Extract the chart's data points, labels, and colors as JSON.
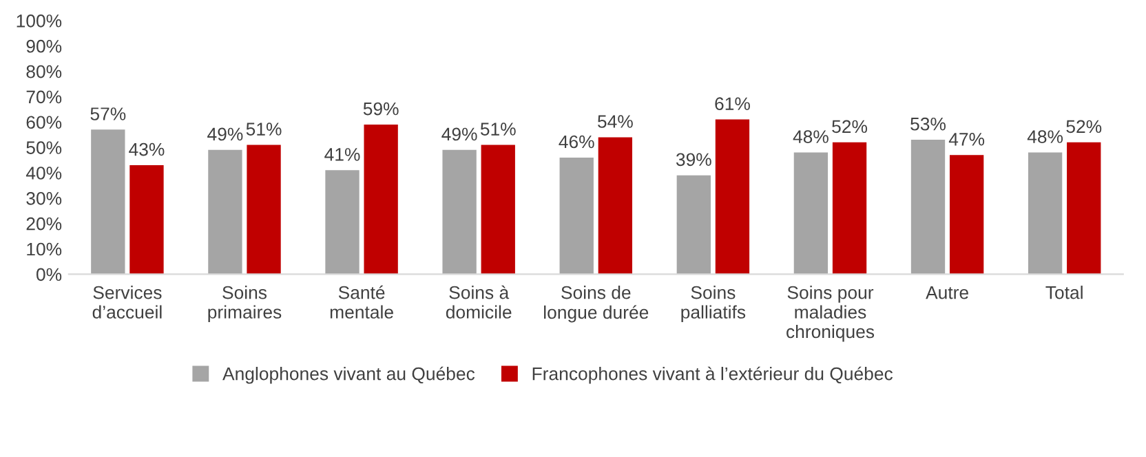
{
  "chart_data": {
    "type": "bar",
    "categories": [
      "Services\nd’accueil",
      "Soins\nprimaires",
      "Santé\nmentale",
      "Soins à\ndomicile",
      "Soins de\nlongue durée",
      "Soins\npalliatifs",
      "Soins pour\nmaladies\nchroniques",
      "Autre",
      "Total"
    ],
    "series": [
      {
        "name": "Anglophones vivant au Québec",
        "color": "#a5a5a5",
        "values": [
          57,
          49,
          41,
          49,
          46,
          39,
          48,
          53,
          48
        ],
        "value_labels": [
          "57%",
          "49%",
          "41%",
          "49%",
          "46%",
          "39%",
          "48%",
          "53%",
          "48%"
        ]
      },
      {
        "name": "Francophones vivant à l’extérieur du Québec",
        "color": "#c00000",
        "values": [
          43,
          51,
          59,
          51,
          54,
          61,
          52,
          47,
          52
        ],
        "value_labels": [
          "43%",
          "51%",
          "59%",
          "51%",
          "54%",
          "61%",
          "52%",
          "47%",
          "52%"
        ]
      }
    ],
    "ylim": [
      0,
      100
    ],
    "yticks": [
      {
        "value": 0,
        "label": "0%"
      },
      {
        "value": 10,
        "label": "10%"
      },
      {
        "value": 20,
        "label": "20%"
      },
      {
        "value": 30,
        "label": "30%"
      },
      {
        "value": 40,
        "label": "40%"
      },
      {
        "value": 50,
        "label": "50%"
      },
      {
        "value": 60,
        "label": "60%"
      },
      {
        "value": 70,
        "label": "70%"
      },
      {
        "value": 80,
        "label": "80%"
      },
      {
        "value": 90,
        "label": "90%"
      },
      {
        "value": 100,
        "label": "100%"
      }
    ],
    "grid": false,
    "legend": "bottom"
  }
}
